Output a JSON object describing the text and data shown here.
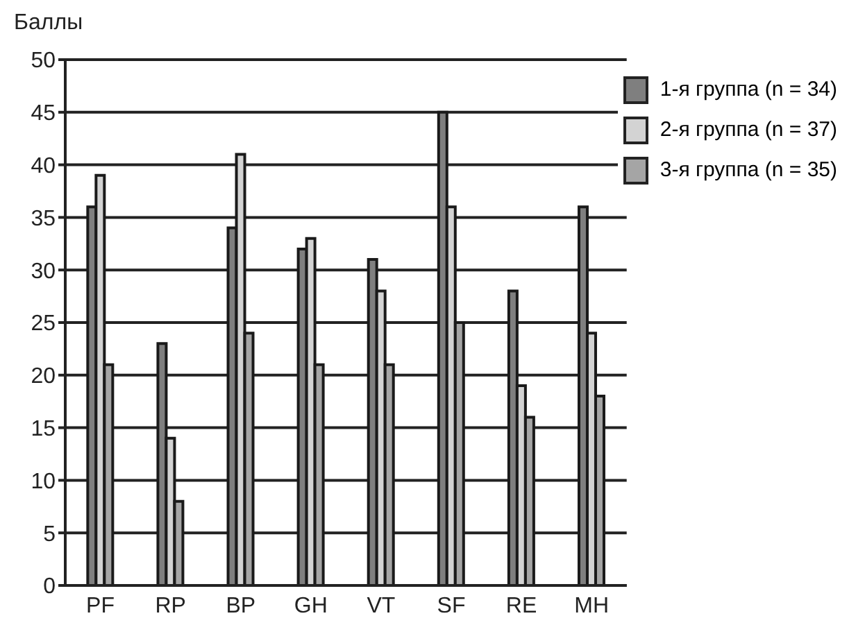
{
  "chart_data": {
    "type": "bar",
    "ylabel": "Баллы",
    "categories": [
      "PF",
      "RP",
      "BP",
      "GH",
      "VT",
      "SF",
      "RE",
      "MH"
    ],
    "series": [
      {
        "name": "1-я группа (n = 34)",
        "color": "#7f7f7f",
        "values": [
          36,
          23,
          34,
          32,
          31,
          45,
          28,
          36
        ]
      },
      {
        "name": "2-я группа (n = 37)",
        "color": "#d3d3d3",
        "values": [
          39,
          14,
          41,
          33,
          28,
          36,
          19,
          24
        ]
      },
      {
        "name": "3-я группа (n = 35)",
        "color": "#a5a5a5",
        "values": [
          21,
          8,
          24,
          21,
          21,
          25,
          16,
          18
        ]
      }
    ],
    "ylim": [
      0,
      50
    ],
    "yticks": [
      0,
      5,
      10,
      15,
      20,
      25,
      30,
      35,
      40,
      45,
      50
    ],
    "grid": "y",
    "legend": "top right"
  }
}
